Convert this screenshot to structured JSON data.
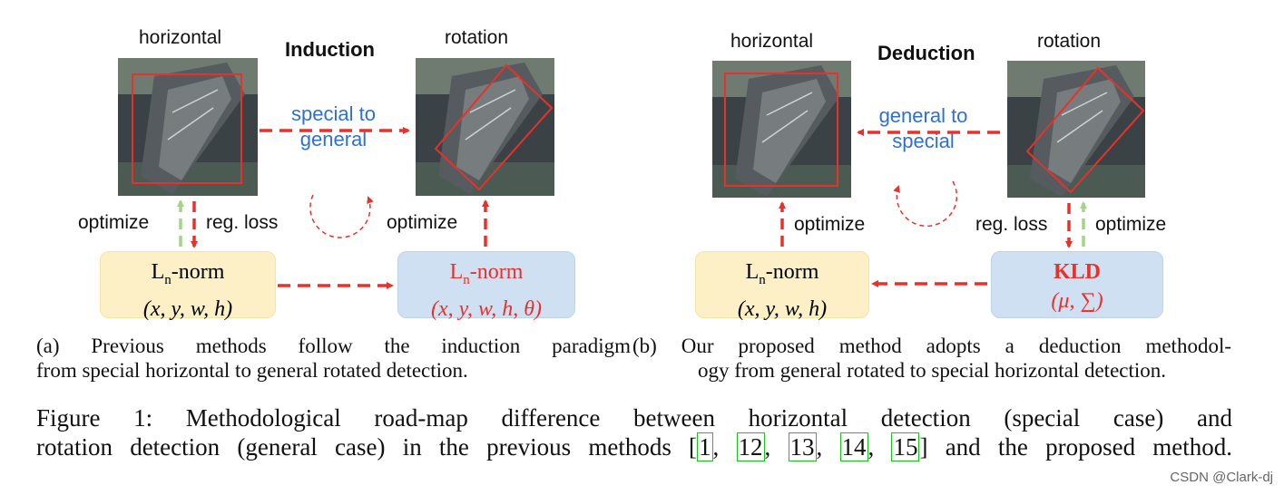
{
  "panel_a": {
    "label_horizontal": "horizontal",
    "label_rotation": "rotation",
    "title": "Induction",
    "arrow_label_line1": "special to",
    "arrow_label_line2": "general",
    "optimize_left": "optimize",
    "reg_loss": "reg. loss",
    "optimize_right": "optimize",
    "box_left": {
      "line1_main": "L",
      "line1_sub": "n",
      "line1_rest": "-norm",
      "line2": "(x, y, w, h)"
    },
    "box_right": {
      "line1_main": "L",
      "line1_sub": "n",
      "line1_rest": "-norm",
      "line2": "(x, y, w, h, θ)"
    }
  },
  "panel_b": {
    "label_horizontal": "horizontal",
    "label_rotation": "rotation",
    "title": "Deduction",
    "arrow_label_line1": "general to",
    "arrow_label_line2": "special",
    "optimize_left": "optimize",
    "reg_loss": "reg. loss",
    "optimize_right": "optimize",
    "box_left": {
      "line1_main": "L",
      "line1_sub": "n",
      "line1_rest": "-norm",
      "line2": "(x, y, w, h)"
    },
    "box_right": {
      "line1": "KLD",
      "line2": "(μ, ∑)"
    }
  },
  "caption_a": {
    "line1": "(a) Previous methods follow the induction paradigm",
    "line2": "from special horizontal to general rotated detection."
  },
  "caption_b": {
    "line1": "(b) Our proposed method adopts a deduction methodol-",
    "line2": "ogy from general rotated to special horizontal detection."
  },
  "figure_caption": {
    "line1": "Figure 1: Methodological road-map difference between horizontal detection (special case) and",
    "line2_prefix": "rotation detection (general case) in the previous methods [",
    "refs": [
      "1",
      "12",
      "13",
      "14",
      "15"
    ],
    "line2_suffix": "] and the proposed method."
  },
  "watermark": "CSDN @Clark-dj",
  "colors": {
    "arrow_red": "#e8312a",
    "arrow_green": "#a6d38a",
    "text_blue": "#2f6fd6",
    "box_yellow": "#fdf0c6",
    "box_blue": "#cfe0f3",
    "ref_green": "#19c21c"
  }
}
